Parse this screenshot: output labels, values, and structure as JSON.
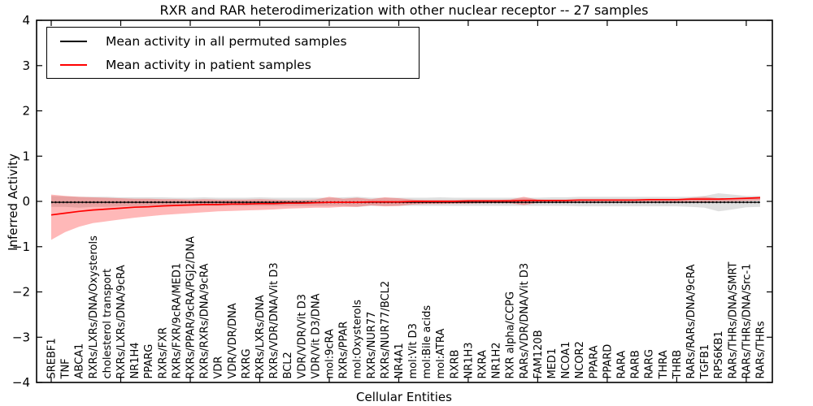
{
  "title": "RXR and RAR heterodimerization with other nuclear receptor -- 27 samples",
  "legend": {
    "items": [
      {
        "label": "Mean activity in all permuted samples",
        "color": "#000000"
      },
      {
        "label": "Mean activity in patient samples",
        "color": "#ff0000"
      }
    ]
  },
  "axes": {
    "ylabel": "Inferred Activity",
    "xlabel": "Cellular Entities"
  },
  "chart_data": {
    "type": "line",
    "title": "RXR and RAR heterodimerization with other nuclear receptor -- 27 samples",
    "xlabel": "Cellular Entities",
    "ylabel": "Inferred Activity",
    "ylim": [
      -4,
      4
    ],
    "grid": false,
    "legend_position": "upper left",
    "yticks": [
      4,
      3,
      2,
      1,
      0,
      -1,
      -2,
      -3,
      -4
    ],
    "ytick_labels": [
      "4",
      "3",
      "2",
      "1",
      "0",
      "−1",
      "−2",
      "−3",
      "−4"
    ],
    "categories": [
      "SREBF1",
      "TNF",
      "ABCA1",
      "RXRs/LXRs/DNA/Oxysterols",
      "cholesterol transport",
      "RXRs/LXRs/DNA/9cRA",
      "NR1H4",
      "PPARG",
      "RXRs/FXR",
      "RXRs/FXR/9cRA/MED1",
      "RXRs/PPAR/9cRA/PGJ2/DNA",
      "RXRs/RXRs/DNA/9cRA",
      "VDR",
      "VDR/VDR/DNA",
      "RXRG",
      "RXRs/LXRs/DNA",
      "RXRs/VDR/DNA/Vit D3",
      "BCL2",
      "VDR/VDR/Vit D3",
      "VDR/Vit D3/DNA",
      "mol:9cRA",
      "RXRs/PPAR",
      "mol:Oxysterols",
      "RXRs/NUR77",
      "RXRs/NUR77/BCL2",
      "NR4A1",
      "mol:Vit D3",
      "mol:Bile acids",
      "mol:ATRA",
      "RXRB",
      "NR1H3",
      "RXRA",
      "NR1H2",
      "RXR alpha/CCPG",
      "RARs/VDR/DNA/Vit D3",
      "FAM120B",
      "MED1",
      "NCOA1",
      "NCOR2",
      "PPARA",
      "PPARD",
      "RARA",
      "RARB",
      "RARG",
      "THRA",
      "THRB",
      "RARs/RARs/DNA/9cRA",
      "TGFB1",
      "RPS6KB1",
      "RARs/THRs/DNA/SMRT",
      "RARs/THRs/DNA/Src-1",
      "RARs/THRs"
    ],
    "series": [
      {
        "name": "Mean activity in all permuted samples",
        "color": "#000000",
        "band_color": "rgba(128,128,128,0.25)",
        "values": [
          -0.02,
          -0.02,
          -0.02,
          -0.02,
          -0.02,
          -0.02,
          -0.02,
          -0.02,
          -0.02,
          -0.02,
          -0.02,
          -0.02,
          -0.02,
          -0.02,
          -0.02,
          -0.02,
          -0.02,
          -0.02,
          -0.02,
          -0.02,
          -0.02,
          -0.02,
          -0.02,
          -0.02,
          -0.02,
          -0.02,
          -0.02,
          -0.02,
          -0.02,
          -0.02,
          -0.02,
          -0.02,
          -0.02,
          -0.02,
          -0.02,
          -0.02,
          -0.02,
          -0.02,
          -0.02,
          -0.02,
          -0.02,
          -0.02,
          -0.02,
          -0.02,
          -0.02,
          -0.02,
          -0.02,
          -0.02,
          -0.02,
          -0.02,
          -0.02,
          -0.02
        ],
        "band_upper": [
          0.12,
          0.11,
          0.1,
          0.1,
          0.1,
          0.09,
          0.09,
          0.09,
          0.09,
          0.08,
          0.08,
          0.09,
          0.08,
          0.08,
          0.08,
          0.09,
          0.08,
          0.08,
          0.08,
          0.08,
          0.08,
          0.09,
          0.1,
          0.08,
          0.08,
          0.08,
          0.08,
          0.08,
          0.09,
          0.08,
          0.08,
          0.08,
          0.08,
          0.08,
          0.08,
          0.08,
          0.09,
          0.09,
          0.1,
          0.1,
          0.1,
          0.1,
          0.1,
          0.1,
          0.1,
          0.1,
          0.1,
          0.12,
          0.18,
          0.15,
          0.12,
          0.12
        ],
        "band_lower": [
          -0.12,
          -0.12,
          -0.14,
          -0.12,
          -0.12,
          -0.11,
          -0.11,
          -0.11,
          -0.1,
          -0.1,
          -0.1,
          -0.1,
          -0.1,
          -0.1,
          -0.1,
          -0.1,
          -0.1,
          -0.1,
          -0.1,
          -0.1,
          -0.1,
          -0.1,
          -0.12,
          -0.1,
          -0.1,
          -0.1,
          -0.1,
          -0.1,
          -0.1,
          -0.1,
          -0.1,
          -0.1,
          -0.1,
          -0.1,
          -0.1,
          -0.1,
          -0.1,
          -0.1,
          -0.11,
          -0.11,
          -0.11,
          -0.11,
          -0.11,
          -0.11,
          -0.11,
          -0.11,
          -0.12,
          -0.14,
          -0.22,
          -0.18,
          -0.13,
          -0.12
        ]
      },
      {
        "name": "Mean activity in patient samples",
        "color": "#ff0000",
        "band_color": "rgba(255,0,0,0.28)",
        "values": [
          -0.3,
          -0.26,
          -0.22,
          -0.19,
          -0.17,
          -0.15,
          -0.13,
          -0.12,
          -0.1,
          -0.09,
          -0.08,
          -0.07,
          -0.07,
          -0.06,
          -0.06,
          -0.05,
          -0.05,
          -0.04,
          -0.04,
          -0.03,
          -0.02,
          -0.02,
          -0.02,
          -0.01,
          -0.01,
          -0.01,
          0.0,
          0.0,
          0.0,
          0.0,
          0.01,
          0.01,
          0.01,
          0.01,
          0.02,
          0.02,
          0.02,
          0.02,
          0.03,
          0.03,
          0.03,
          0.03,
          0.03,
          0.04,
          0.04,
          0.04,
          0.05,
          0.05,
          0.05,
          0.06,
          0.07,
          0.08
        ],
        "band_upper": [
          0.15,
          0.12,
          0.1,
          0.09,
          0.08,
          0.07,
          0.06,
          0.06,
          0.05,
          0.05,
          0.04,
          0.05,
          0.04,
          0.04,
          0.04,
          0.05,
          0.04,
          0.03,
          0.03,
          0.04,
          0.1,
          0.06,
          0.08,
          0.05,
          0.09,
          0.07,
          0.04,
          0.03,
          0.03,
          0.03,
          0.03,
          0.03,
          0.03,
          0.04,
          0.1,
          0.04,
          0.03,
          0.03,
          0.04,
          0.04,
          0.04,
          0.04,
          0.04,
          0.05,
          0.05,
          0.05,
          0.08,
          0.1,
          0.07,
          0.07,
          0.08,
          0.1
        ],
        "band_lower": [
          -0.85,
          -0.68,
          -0.56,
          -0.48,
          -0.44,
          -0.4,
          -0.36,
          -0.33,
          -0.3,
          -0.28,
          -0.26,
          -0.24,
          -0.22,
          -0.21,
          -0.2,
          -0.19,
          -0.18,
          -0.16,
          -0.15,
          -0.14,
          -0.14,
          -0.12,
          -0.12,
          -0.09,
          -0.11,
          -0.1,
          -0.07,
          -0.06,
          -0.06,
          -0.05,
          -0.05,
          -0.04,
          -0.04,
          -0.04,
          -0.08,
          -0.03,
          -0.02,
          -0.02,
          -0.02,
          -0.02,
          -0.02,
          -0.01,
          -0.01,
          -0.01,
          -0.01,
          -0.01,
          -0.01,
          -0.02,
          0.0,
          0.0,
          0.01,
          0.02
        ]
      }
    ]
  }
}
